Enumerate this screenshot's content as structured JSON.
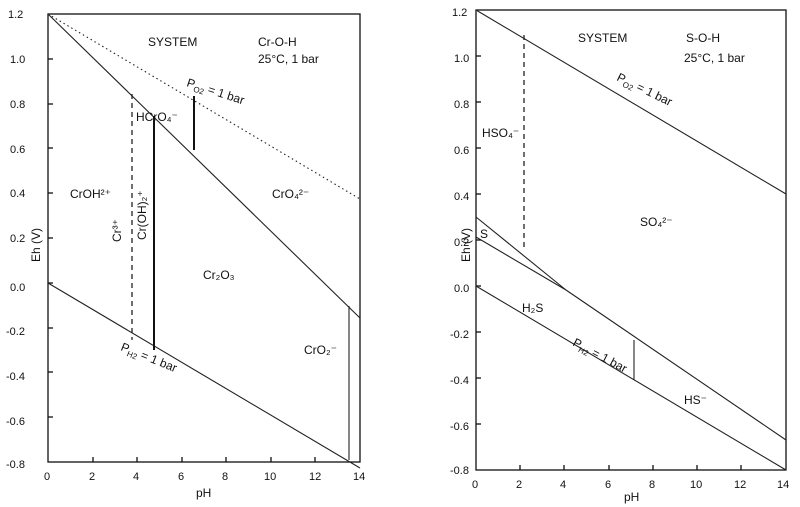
{
  "diagrams": [
    {
      "system_label": "SYSTEM",
      "system_name": "Cr-O-H",
      "conditions": "25°C, 1 bar",
      "xlabel": "pH",
      "ylabel": "Eh (V)",
      "xticks": [
        "0",
        "2",
        "4",
        "6",
        "8",
        "10",
        "12",
        "14"
      ],
      "yticks": [
        "1.2",
        "1.0",
        "0.8",
        "0.6",
        "0.4",
        "0.2",
        "0.0",
        "-0.2",
        "-0.4",
        "-0.6",
        "-0.8"
      ],
      "o2_label": "P",
      "o2_sub": "O2",
      "o2_rest": " = 1 bar",
      "h2_label": "P",
      "h2_sub": "H2",
      "h2_rest": " = 1 bar",
      "fields": {
        "croh": "CrOH²⁺",
        "hcro4": "HCrO₄⁻",
        "cro4": "CrO₄²⁻",
        "cr2o3": "Cr₂O₃",
        "cro2": "CrO₂⁻",
        "cr3": "Cr³⁺",
        "croh2": "Cr(OH)₂⁺"
      }
    },
    {
      "system_label": "SYSTEM",
      "system_name": "S-O-H",
      "conditions": "25°C, 1 bar",
      "xlabel": "pH",
      "ylabel": "Eh (V)",
      "xticks": [
        "0",
        "2",
        "4",
        "6",
        "8",
        "10",
        "12",
        "14"
      ],
      "yticks": [
        "1.2",
        "1.0",
        "0.8",
        "0.6",
        "0.4",
        "0.2",
        "0.0",
        "-0.2",
        "-0.4",
        "-0.6",
        "-0.8"
      ],
      "o2_label": "P",
      "o2_sub": "O2",
      "o2_rest": " = 1 bar",
      "h2_label": "P",
      "h2_sub": "H2",
      "h2_rest": " = 1 bar",
      "fields": {
        "hso4": "HSO₄⁻",
        "so4": "SO₄²⁻",
        "s": "S",
        "h2s": "H₂S",
        "hs": "HS⁻"
      }
    }
  ]
}
